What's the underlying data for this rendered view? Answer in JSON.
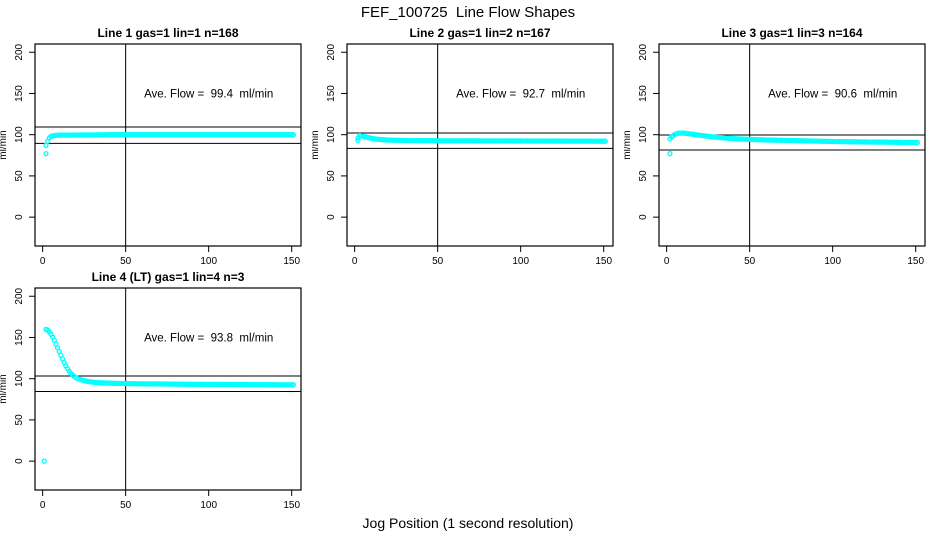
{
  "figure": {
    "title": "FEF_100725  Line Flow Shapes",
    "xlabel": "Jog Position (1 second resolution)",
    "ylabel": "ml/min",
    "background_color": "#FFFFFF",
    "axis_color": "#000000",
    "marker_color": "#00FFFF"
  },
  "chart_data": [
    {
      "type": "scatter",
      "title": "Line 1 gas=1 lin=1 n=168",
      "annotation": "Ave. Flow =  99.4  ml/min",
      "ave_flow_ml_min": 99.4,
      "n_points": 168,
      "ylabel": "ml/min",
      "marker": {
        "shape": "open-circle",
        "color": "#00FFFF"
      },
      "xlim": [
        -4.6,
        155.6
      ],
      "ylim": [
        -35,
        210
      ],
      "xticks": [
        0,
        50,
        100,
        150
      ],
      "yticks": [
        0,
        50,
        100,
        150,
        200
      ],
      "grid": false,
      "vline_x": 50,
      "hlines_y": [
        109.3,
        89.5
      ],
      "series_x_range": [
        2,
        151
      ],
      "series_anchor_points": [
        [
          2,
          87
        ],
        [
          3,
          92
        ],
        [
          4,
          96
        ],
        [
          5,
          98
        ],
        [
          7,
          99
        ],
        [
          10,
          99.4
        ],
        [
          40,
          100
        ],
        [
          151,
          100
        ]
      ],
      "outlier_points": [
        [
          2,
          77
        ]
      ]
    },
    {
      "type": "scatter",
      "title": "Line 2 gas=1 lin=2 n=167",
      "annotation": "Ave. Flow =  92.7  ml/min",
      "ave_flow_ml_min": 92.7,
      "n_points": 167,
      "ylabel": "ml/min",
      "marker": {
        "shape": "open-circle",
        "color": "#00FFFF"
      },
      "xlim": [
        -4.6,
        155.6
      ],
      "ylim": [
        -35,
        210
      ],
      "xticks": [
        0,
        50,
        100,
        150
      ],
      "yticks": [
        0,
        50,
        100,
        150,
        200
      ],
      "grid": false,
      "vline_x": 50,
      "hlines_y": [
        102.0,
        83.4
      ],
      "series_x_range": [
        2,
        151
      ],
      "series_anchor_points": [
        [
          2,
          96
        ],
        [
          3,
          99
        ],
        [
          4,
          98.6
        ],
        [
          6,
          97.6
        ],
        [
          8,
          96.6
        ],
        [
          10,
          95.6
        ],
        [
          14,
          94.4
        ],
        [
          20,
          93.5
        ],
        [
          30,
          93
        ],
        [
          50,
          92.7
        ],
        [
          100,
          92.4
        ],
        [
          151,
          92.1
        ]
      ],
      "outlier_points": [
        [
          2,
          93
        ]
      ]
    },
    {
      "type": "scatter",
      "title": "Line 3 gas=1 lin=3 n=164",
      "annotation": "Ave. Flow =  90.6  ml/min",
      "ave_flow_ml_min": 90.6,
      "n_points": 164,
      "ylabel": "ml/min",
      "marker": {
        "shape": "open-circle",
        "color": "#00FFFF"
      },
      "xlim": [
        -4.6,
        155.6
      ],
      "ylim": [
        -35,
        210
      ],
      "xticks": [
        0,
        50,
        100,
        150
      ],
      "yticks": [
        0,
        50,
        100,
        150,
        200
      ],
      "grid": false,
      "vline_x": 50,
      "hlines_y": [
        99.7,
        81.5
      ],
      "series_x_range": [
        2,
        151
      ],
      "series_anchor_points": [
        [
          2,
          95
        ],
        [
          3,
          97.5
        ],
        [
          5,
          100.5
        ],
        [
          7,
          101.8
        ],
        [
          10,
          102
        ],
        [
          14,
          101
        ],
        [
          20,
          99.3
        ],
        [
          26,
          97.8
        ],
        [
          32,
          96.5
        ],
        [
          40,
          95.3
        ],
        [
          50,
          94.3
        ],
        [
          60,
          93.6
        ],
        [
          80,
          92.7
        ],
        [
          100,
          91.8
        ],
        [
          120,
          91.2
        ],
        [
          151,
          90.5
        ]
      ],
      "outlier_points": [
        [
          2,
          77
        ]
      ]
    },
    {
      "type": "scatter",
      "title": "Line 4 (LT) gas=1 lin=4 n=3",
      "annotation": "Ave. Flow =  93.8  ml/min",
      "ave_flow_ml_min": 93.8,
      "n_points": 3,
      "ylabel": "ml/min",
      "marker": {
        "shape": "open-circle",
        "color": "#00FFFF"
      },
      "xlim": [
        -4.6,
        155.6
      ],
      "ylim": [
        -35,
        210
      ],
      "xticks": [
        0,
        50,
        100,
        150
      ],
      "yticks": [
        0,
        50,
        100,
        150,
        200
      ],
      "grid": false,
      "vline_x": 50,
      "hlines_y": [
        103.2,
        84.4
      ],
      "series_x_range": [
        2,
        151
      ],
      "series_anchor_points": [
        [
          2,
          160
        ],
        [
          3,
          159
        ],
        [
          4,
          157
        ],
        [
          5,
          154
        ],
        [
          6,
          150.5
        ],
        [
          7,
          146.5
        ],
        [
          8,
          142
        ],
        [
          9,
          137.5
        ],
        [
          10,
          133
        ],
        [
          11,
          128.5
        ],
        [
          12,
          124
        ],
        [
          13,
          119.5
        ],
        [
          14,
          115.5
        ],
        [
          15,
          112
        ],
        [
          16,
          109
        ],
        [
          17,
          106.5
        ],
        [
          18,
          104.5
        ],
        [
          19,
          102.8
        ],
        [
          20,
          101.4
        ],
        [
          22,
          99.5
        ],
        [
          24,
          98.2
        ],
        [
          26,
          97.2
        ],
        [
          28,
          96.4
        ],
        [
          30,
          95.8
        ],
        [
          35,
          95
        ],
        [
          40,
          94.6
        ],
        [
          50,
          94.1
        ],
        [
          60,
          93.8
        ],
        [
          80,
          93.4
        ],
        [
          100,
          93.1
        ],
        [
          120,
          92.9
        ],
        [
          151,
          92.6
        ]
      ],
      "outlier_points": [
        [
          1,
          0
        ]
      ]
    }
  ]
}
